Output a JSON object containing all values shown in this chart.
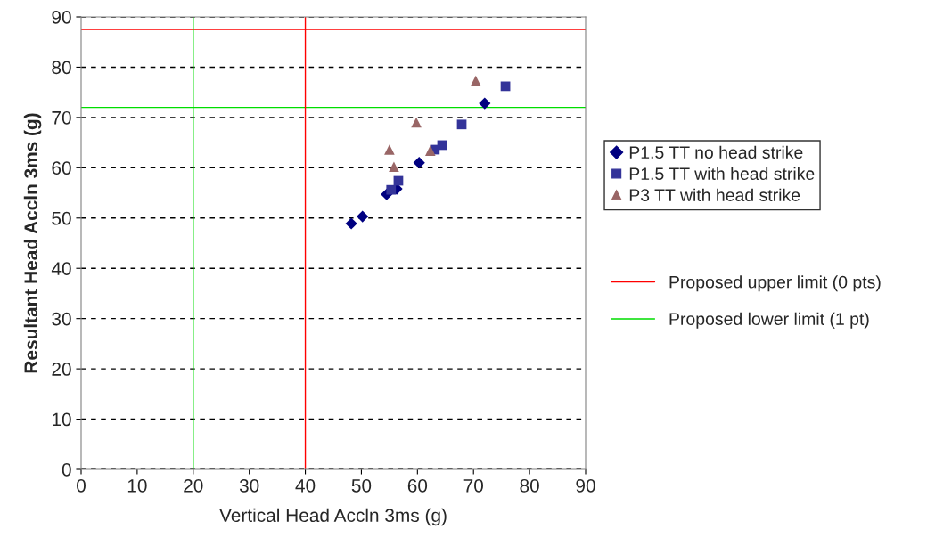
{
  "chart_data": {
    "type": "scatter",
    "xlabel": "Vertical Head Accln 3ms (g)",
    "ylabel": "Resultant Head Accln 3ms (g)",
    "xlim": [
      0,
      90
    ],
    "xticks": [
      0,
      10,
      20,
      30,
      40,
      50,
      60,
      70,
      80,
      90
    ],
    "ylim": [
      0,
      90
    ],
    "yticks": [
      0,
      10,
      20,
      30,
      40,
      50,
      60,
      70,
      80,
      90
    ],
    "grid": "y",
    "legend": "right",
    "series": [
      {
        "name": "P1.5 TT no head strike",
        "color": "#000080",
        "marker": "diamond",
        "x": [
          48.2,
          50.2,
          54.5,
          56.3,
          60.3,
          72.0
        ],
        "values": [
          48.9,
          50.3,
          54.7,
          55.8,
          61.0,
          72.8
        ]
      },
      {
        "name": "P1.5 TT with head strike",
        "color": "#333399",
        "marker": "square",
        "x": [
          55.3,
          56.6,
          63.1,
          64.4,
          67.9,
          75.7
        ],
        "values": [
          55.6,
          57.4,
          63.6,
          64.5,
          68.6,
          76.2
        ]
      },
      {
        "name": "P3 TT with head strike",
        "color": "#996666",
        "marker": "triangle",
        "x": [
          55.0,
          55.8,
          59.8,
          62.3,
          70.4
        ],
        "values": [
          63.6,
          60.2,
          69.0,
          63.4,
          77.3
        ]
      }
    ],
    "ref_lines": [
      {
        "axis": "y",
        "value": 87.5,
        "label": "Proposed upper limit (0 pts)",
        "color": "#ff0000"
      },
      {
        "axis": "y",
        "value": 72,
        "label": "Proposed lower limit (1 pt)",
        "color": "#00dd00"
      },
      {
        "axis": "x",
        "value": 40,
        "label": null,
        "color": "#ff0000"
      },
      {
        "axis": "x",
        "value": 20,
        "label": null,
        "color": "#00dd00"
      }
    ]
  }
}
